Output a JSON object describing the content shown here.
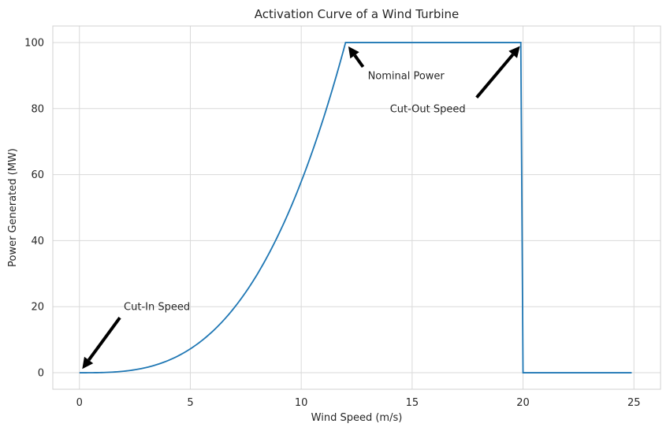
{
  "chart_data": {
    "type": "line",
    "title": "Activation Curve of a Wind Turbine",
    "xlabel": "Wind Speed (m/s)",
    "ylabel": "Power Generated (MW)",
    "xlim": [
      -1.2,
      26.2
    ],
    "ylim": [
      -5,
      105
    ],
    "xticks": [
      0,
      5,
      10,
      15,
      20,
      25
    ],
    "yticks": [
      0,
      20,
      40,
      60,
      80,
      100
    ],
    "grid": true,
    "line_color": "#1f77b4",
    "series": [
      {
        "x": [
          0,
          1,
          2,
          3,
          4,
          5,
          6,
          7,
          8,
          9,
          10,
          11,
          12,
          19.9,
          20,
          24.9
        ],
        "y": [
          0,
          0.06,
          0.46,
          1.56,
          3.7,
          7.23,
          12.5,
          19.85,
          29.6,
          42.2,
          57.9,
          77.0,
          100,
          100,
          0,
          0
        ]
      }
    ],
    "annotations": [
      {
        "text": "Cut-In Speed",
        "point": [
          0,
          0
        ],
        "text_pos": [
          2,
          20
        ]
      },
      {
        "text": "Nominal Power",
        "point": [
          12,
          100
        ],
        "text_pos": [
          13,
          90
        ]
      },
      {
        "text": "Cut-Out Speed",
        "point": [
          20,
          100
        ],
        "text_pos": [
          14,
          80
        ]
      }
    ]
  }
}
